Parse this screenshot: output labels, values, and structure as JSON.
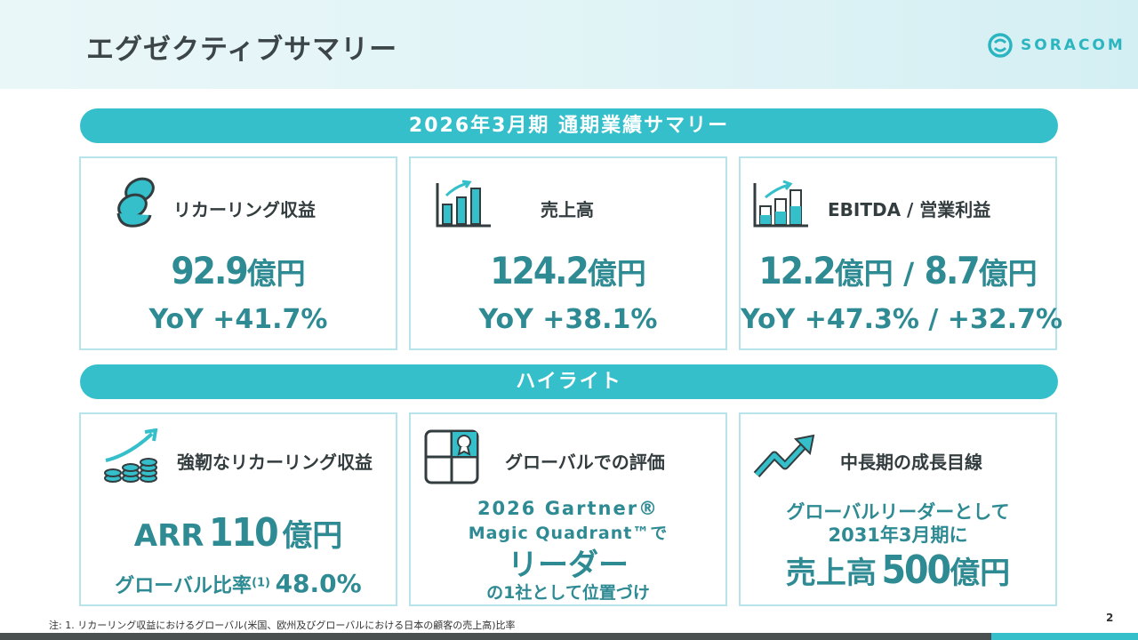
{
  "page_title": "エグゼクティブサマリー",
  "logo_text": "SORACOM",
  "banner_summary": "2026年3月期  通期業績サマリー",
  "banner_highlights": "ハイライト",
  "summary_cards": [
    {
      "label": "リカーリング収益",
      "value": "92.9",
      "unit": "億円",
      "yoy": "YoY +41.7%",
      "icon": "coins-stack-icon"
    },
    {
      "label": "売上高",
      "value": "124.2",
      "unit": "億円",
      "yoy": "YoY +38.1%",
      "icon": "bar-chart-growth-icon"
    },
    {
      "label": "EBITDA / 営業利益",
      "value1": "12.2",
      "unit1": "億円",
      "sep": " / ",
      "value2": "8.7",
      "unit2": "億円",
      "yoy": "YoY +47.3% / +32.7%",
      "icon": "bar-chart-split-icon"
    }
  ],
  "highlight_cards": [
    {
      "label": "強靭なリカーリング収益",
      "line1_prefix": "ARR",
      "line1_value": "110",
      "line1_unit": "億円",
      "line2_label": "グローバル比率",
      "line2_note": "(1)",
      "line2_value": "48.0%",
      "icon": "coins-growth-icon"
    },
    {
      "label": "グローバルでの評価",
      "line1": "2026 Gartner®",
      "line2": "Magic Quadrant™で",
      "line3": "リーダー",
      "line4": "の1社として位置づけ",
      "icon": "quadrant-award-icon"
    },
    {
      "label": "中長期の成長目線",
      "line1": "グローバルリーダーとして",
      "line2": "2031年3月期に",
      "line3_prefix": "売上高",
      "line3_value": "500",
      "line3_unit": "億円",
      "icon": "trend-arrow-icon"
    }
  ],
  "footnote": "注: 1. リカーリング収益におけるグローバル(米国、欧州及びグローバルにおける日本の顧客の売上高)比率",
  "page_number": "2",
  "colors": {
    "accent": "#34bfca",
    "value_text": "#2e8a93",
    "card_border": "#b6e4ea"
  }
}
